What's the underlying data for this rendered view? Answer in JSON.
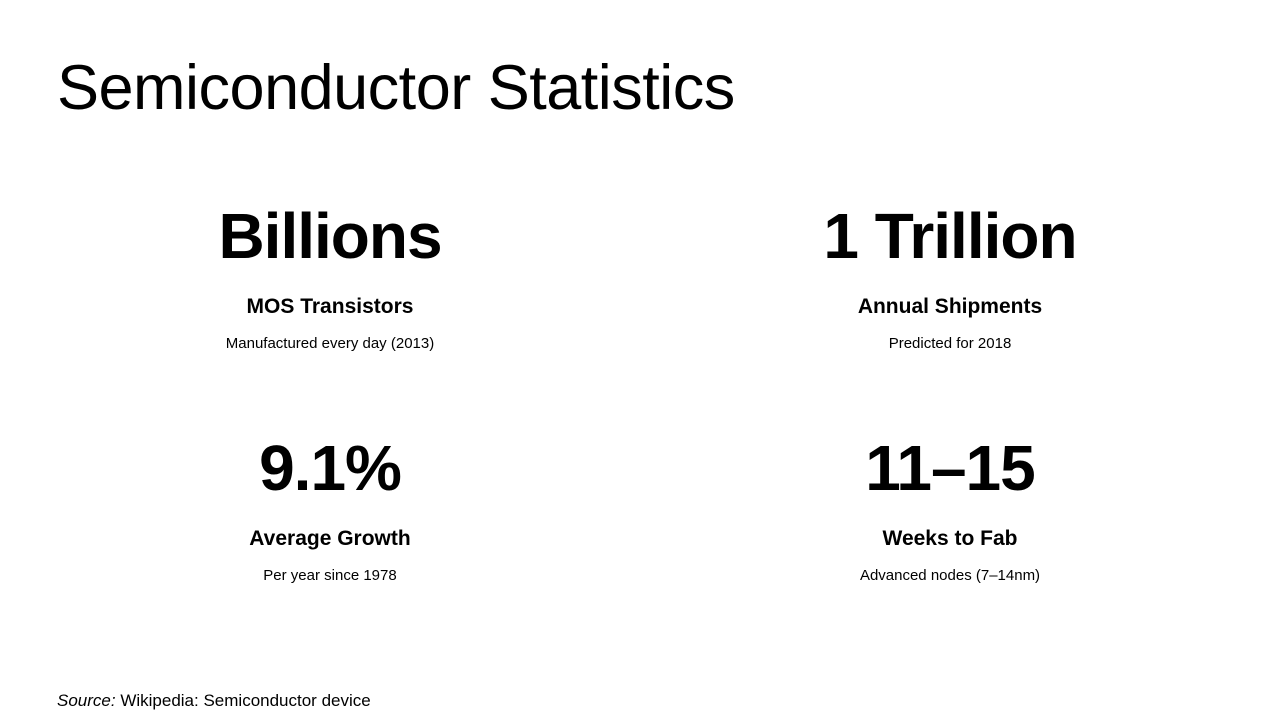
{
  "title": "Semiconductor Statistics",
  "stats": [
    {
      "value": "Billions",
      "label": "MOS Transistors",
      "description": "Manufactured every day (2013)"
    },
    {
      "value": "1 Trillion",
      "label": "Annual Shipments",
      "description": "Predicted for 2018"
    },
    {
      "value": "9.1%",
      "label": "Average Growth",
      "description": "Per year since 1978"
    },
    {
      "value": "11–15",
      "label": "Weeks to Fab",
      "description": "Advanced nodes (7–14nm)"
    }
  ],
  "source": {
    "prefix": "Source:",
    "text": " Wikipedia: Semiconductor device"
  }
}
